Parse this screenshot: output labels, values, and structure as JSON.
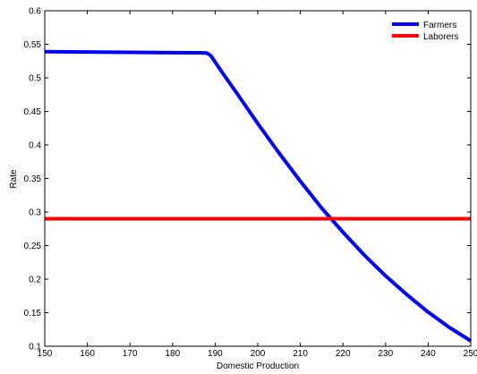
{
  "chart_data": {
    "type": "line",
    "xlabel": "Domestic Production",
    "ylabel": "Rate",
    "xlim": [
      150,
      250
    ],
    "ylim": [
      0.1,
      0.6
    ],
    "xticks": [
      150,
      160,
      170,
      180,
      190,
      200,
      210,
      220,
      230,
      240,
      250
    ],
    "xtick_labels": [
      "150",
      "160",
      "170",
      "180",
      "190",
      "200",
      "210",
      "220",
      "230",
      "240",
      "250"
    ],
    "yticks": [
      0.1,
      0.15,
      0.2,
      0.25,
      0.3,
      0.35,
      0.4,
      0.45,
      0.5,
      0.55,
      0.6
    ],
    "ytick_labels": [
      "0.1",
      "0.15",
      "0.2",
      "0.25",
      "0.3",
      "0.35",
      "0.4",
      "0.45",
      "0.5",
      "0.55",
      "0.6"
    ],
    "grid": false,
    "legend_position": "top-right",
    "series": [
      {
        "name": "Farmers",
        "color": "#0000ff",
        "x": [
          150,
          160,
          170,
          180,
          186,
          188,
          189,
          192,
          195,
          200,
          205,
          210,
          215,
          220,
          225,
          230,
          235,
          240,
          245,
          250
        ],
        "y": [
          0.539,
          0.5385,
          0.538,
          0.5375,
          0.5373,
          0.537,
          0.533,
          0.505,
          0.478,
          0.432,
          0.388,
          0.346,
          0.306,
          0.27,
          0.236,
          0.205,
          0.177,
          0.151,
          0.128,
          0.108
        ]
      },
      {
        "name": "Laborers",
        "color": "#ff0000",
        "x": [
          150,
          250
        ],
        "y": [
          0.29,
          0.29
        ]
      }
    ]
  }
}
